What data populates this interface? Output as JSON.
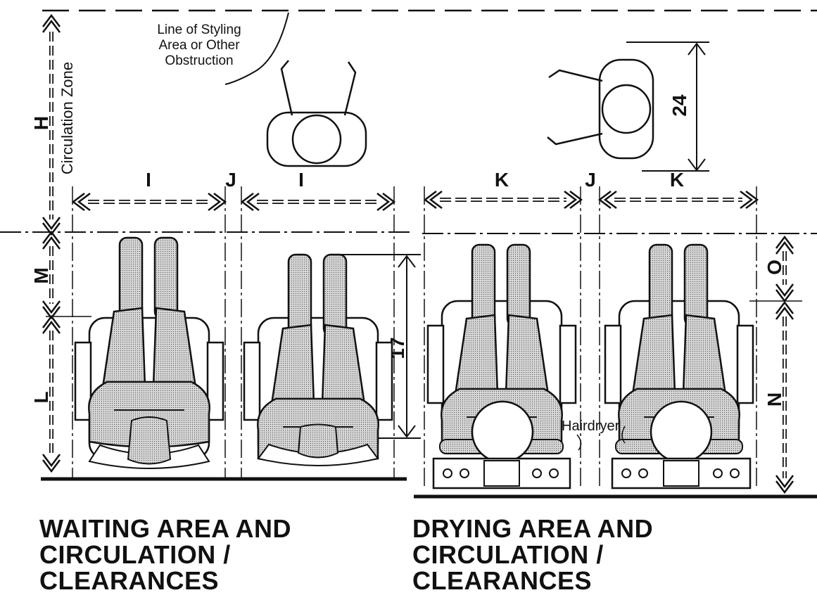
{
  "labels": {
    "H": "H",
    "circulation_zone": "Circulation Zone",
    "M": "M",
    "L": "L",
    "I_left": "I",
    "J_left": "J",
    "I_right": "I",
    "K_left": "K",
    "J_right": "J",
    "K_right": "K",
    "O": "O",
    "N": "N",
    "dim_17": "17",
    "dim_24": "24"
  },
  "annotations": {
    "obstruction": [
      "Line of Styling",
      "Area or Other",
      "Obstruction"
    ],
    "hairdryer": "Hairdryer"
  },
  "titles": {
    "waiting": [
      "WAITING AREA AND",
      "CIRCULATION /",
      "CLEARANCES"
    ],
    "drying": [
      "DRYING AREA AND",
      "CIRCULATION /",
      "CLEARANCES"
    ]
  }
}
